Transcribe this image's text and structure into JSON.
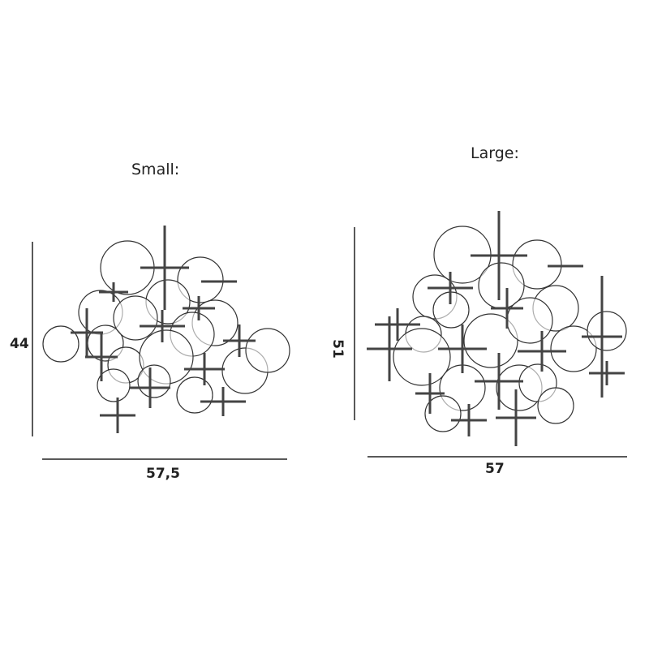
{
  "small": {
    "title": "Small:",
    "height": "44",
    "width": "57,5"
  },
  "large": {
    "title": "Large:",
    "height": "51",
    "width": "57"
  },
  "colors": {
    "line": "#222222",
    "rod": "#555555"
  }
}
